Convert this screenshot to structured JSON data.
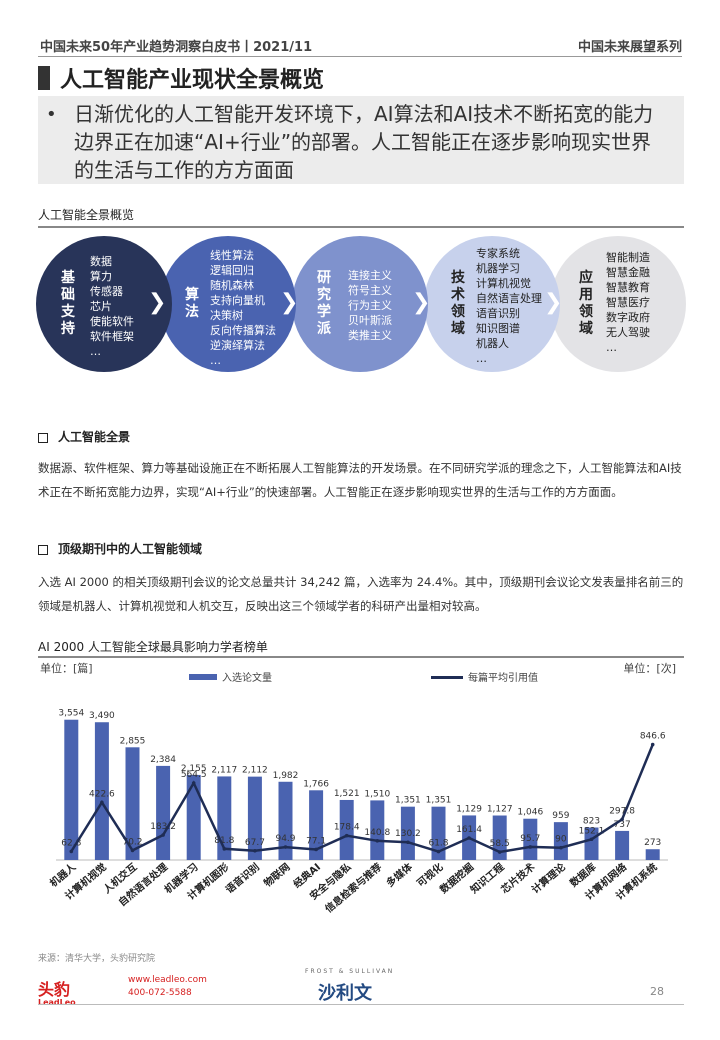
{
  "header": {
    "left": "中国未来50年产业趋势洞察白皮书丨2021/11",
    "right": "中国未来展望系列"
  },
  "title": "人工智能产业现状全景概览",
  "intro": {
    "bullet": "•",
    "text": "日渐优化的人工智能开发环境下，AI算法和AI技术不断拓宽的能力边界正在加速“AI+行业”的部署。人工智能正在逐步影响现实世界的生活与工作的方方面面"
  },
  "panorama": {
    "title": "人工智能全景概览",
    "stages": [
      {
        "label": "基础支持",
        "items": [
          "数据",
          "算力",
          "传感器",
          "芯片",
          "使能软件",
          "软件框架",
          "…"
        ]
      },
      {
        "label": "算法",
        "items": [
          "线性算法",
          "逻辑回归",
          "随机森林",
          "支持向量机",
          "决策树",
          "反向传播算法",
          "逆演绎算法",
          "…"
        ]
      },
      {
        "label": "研究学派",
        "items": [
          "连接主义",
          "符号主义",
          "行为主义",
          "贝叶斯派",
          "类推主义"
        ]
      },
      {
        "label": "技术领域",
        "items": [
          "专家系统",
          "机器学习",
          "计算机视觉",
          "自然语言处理",
          "语音识别",
          "知识图谱",
          "机器人",
          "…"
        ]
      },
      {
        "label": "应用领域",
        "items": [
          "智能制造",
          "智慧金融",
          "智慧教育",
          "智慧医疗",
          "数字政府",
          "无人驾驶",
          "…"
        ]
      }
    ],
    "arrow": "❯"
  },
  "section1": {
    "title": "人工智能全景",
    "text": "数据源、软件框架、算力等基础设施正在不断拓展人工智能算法的开发场景。在不同研究学派的理念之下，人工智能算法和AI技术正在不断拓宽能力边界，实现“AI+行业”的快速部署。人工智能正在逐步影响现实世界的生活与工作的方方面面。"
  },
  "section2": {
    "title": "顶级期刊中的人工智能领域",
    "text": "入选 AI 2000 的相关顶级期刊会议的论文总量共计 34,242 篇，入选率为 24.4%。其中，顶级期刊会议论文发表量排名前三的领域是机器人、计算机视觉和人机交互，反映出这三个领域学者的科研产出量相对较高。"
  },
  "chart_title": "AI 2000 人工智能全球最具影响力学者榜单",
  "chart_data": {
    "type": "bar",
    "categories": [
      "机器人",
      "计算机视觉",
      "人机交互",
      "自然语言处理",
      "机器学习",
      "计算机图形",
      "语音识别",
      "物联网",
      "经典AI",
      "安全与隐私",
      "信息检索与推荐",
      "多媒体",
      "可视化",
      "数据挖掘",
      "知识工程",
      "芯片技术",
      "计算理论",
      "数据库",
      "计算机网络",
      "计算机系统"
    ],
    "series": [
      {
        "name": "入选论文量",
        "type": "bar",
        "axis": "left",
        "values": [
          3554,
          3490,
          2855,
          2384,
          2155,
          2117,
          2112,
          1982,
          1766,
          1521,
          1510,
          1351,
          1351,
          1129,
          1127,
          1046,
          959,
          823,
          737,
          273
        ]
      },
      {
        "name": "每篇平均引用值",
        "type": "line",
        "axis": "right",
        "values": [
          62.8,
          422.6,
          70.2,
          183.2,
          564.5,
          81.8,
          67.7,
          94.9,
          77.1,
          178.4,
          140.8,
          130.2,
          61.8,
          161.4,
          58.5,
          95.7,
          90,
          152.1,
          297.8,
          846.6
        ]
      }
    ],
    "left_unit": "单位：[篇]",
    "right_unit": "单位：[次]",
    "colors": {
      "bar": "#4a63b0",
      "line": "#1f2d55"
    }
  },
  "footer": {
    "source": "来源：清华大学，头豹研究院",
    "logo1": "头豹",
    "logo1_sub": "LeadLeo",
    "contact_web": "www.leadleo.com",
    "contact_phone": "400-072-5588",
    "logo2": "沙利文",
    "logo2_sub": "FROST & SULLIVAN",
    "page": "28"
  }
}
